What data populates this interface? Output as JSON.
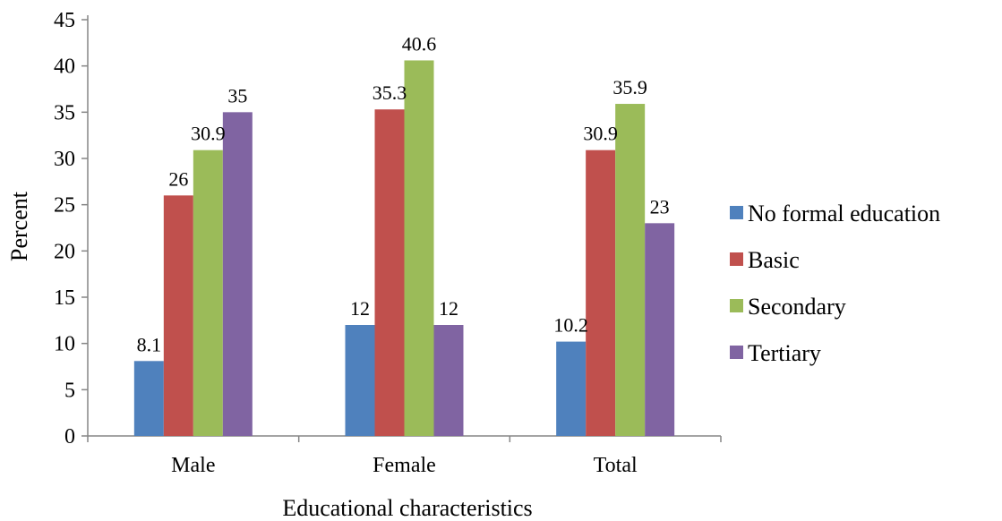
{
  "chart_data": {
    "type": "bar",
    "title": "",
    "xlabel": "Educational characteristics",
    "ylabel": "Percent",
    "ylim": [
      0,
      45
    ],
    "yticks": [
      0,
      5,
      10,
      15,
      20,
      25,
      30,
      35,
      40,
      45
    ],
    "categories": [
      "Male",
      "Female",
      "Total"
    ],
    "series": [
      {
        "name": "No formal education",
        "color": "#4F81BD",
        "values": [
          8.1,
          12,
          10.2
        ],
        "labels": [
          "8.1",
          "12",
          "10.2"
        ]
      },
      {
        "name": "Basic",
        "color": "#C0504D",
        "values": [
          26,
          35.3,
          30.9
        ],
        "labels": [
          "26",
          "35.3",
          "30.9"
        ]
      },
      {
        "name": "Secondary",
        "color": "#9BBB59",
        "values": [
          30.9,
          40.6,
          35.9
        ],
        "labels": [
          "30.9",
          "40.6",
          "35.9"
        ]
      },
      {
        "name": "Tertiary",
        "color": "#8064A2",
        "values": [
          35,
          12,
          23
        ],
        "labels": [
          "35",
          "12",
          "23"
        ]
      }
    ],
    "grid": false,
    "legend_position": "right"
  }
}
